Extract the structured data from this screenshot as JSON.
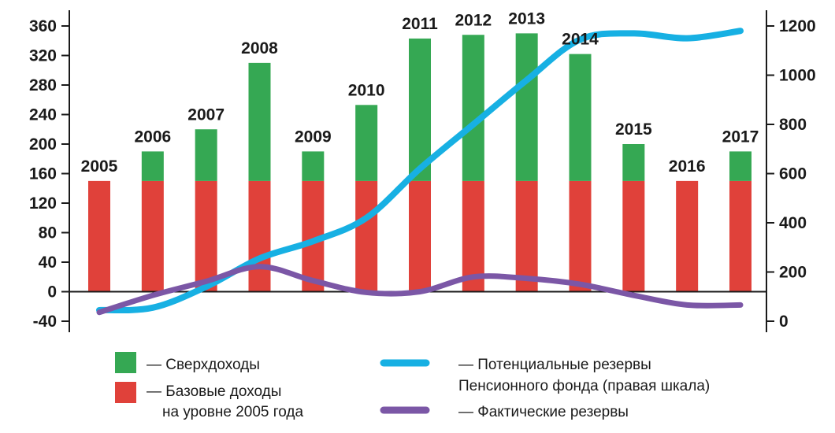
{
  "chart_data": {
    "type": "bar",
    "categories": [
      "2005",
      "2006",
      "2007",
      "2008",
      "2009",
      "2010",
      "2011",
      "2012",
      "2013",
      "2014",
      "2015",
      "2016",
      "2017"
    ],
    "series": [
      {
        "name": "— Базовые доходы на уровне 2005 года",
        "kind": "bar",
        "stack": "main",
        "axis": "left",
        "color": "#e0413a",
        "values": [
          150,
          150,
          150,
          150,
          150,
          150,
          150,
          150,
          150,
          150,
          150,
          150,
          150
        ]
      },
      {
        "name": "— Сверхдоходы",
        "kind": "bar",
        "stack": "main",
        "axis": "left",
        "color": "#35a853",
        "values": [
          0,
          40,
          70,
          160,
          40,
          103,
          193,
          198,
          200,
          172,
          50,
          0,
          40
        ]
      },
      {
        "name": "— Потенциальные резервы Пенсионного фонда (правая шкала)",
        "kind": "line",
        "axis": "right",
        "color": "#17b0e3",
        "values": [
          45,
          55,
          140,
          255,
          325,
          420,
          620,
          800,
          980,
          1145,
          1170,
          1150,
          1180
        ]
      },
      {
        "name": "— Фактические резервы",
        "kind": "line",
        "axis": "left",
        "color": "#7b57a6",
        "values": [
          -28,
          -5,
          14,
          34,
          15,
          -1,
          0,
          20,
          18,
          10,
          -5,
          -18,
          -18
        ]
      }
    ],
    "left_axis": {
      "min": -40,
      "max": 360,
      "ticks": [
        "-40",
        "0",
        "40",
        "80",
        "120",
        "160",
        "200",
        "240",
        "280",
        "320",
        "360"
      ]
    },
    "right_axis": {
      "min": 0,
      "max": 1200,
      "ticks": [
        "0",
        "200",
        "400",
        "600",
        "800",
        "1000",
        "1200"
      ]
    },
    "grid": false,
    "legend_position": "bottom",
    "legend": {
      "green": "— Сверхдоходы",
      "red_line1": "— Базовые доходы",
      "red_line2": "на уровне 2005 года",
      "blue_line1": "— Потенциальные резервы",
      "blue_line2": "Пенсионного фонда (правая шкала)",
      "purple": "— Фактические резервы"
    },
    "colors": {
      "base": "#e0413a",
      "excess": "#35a853",
      "potential": "#17b0e3",
      "actual": "#7b57a6",
      "axis": "#1a1a1a"
    }
  }
}
